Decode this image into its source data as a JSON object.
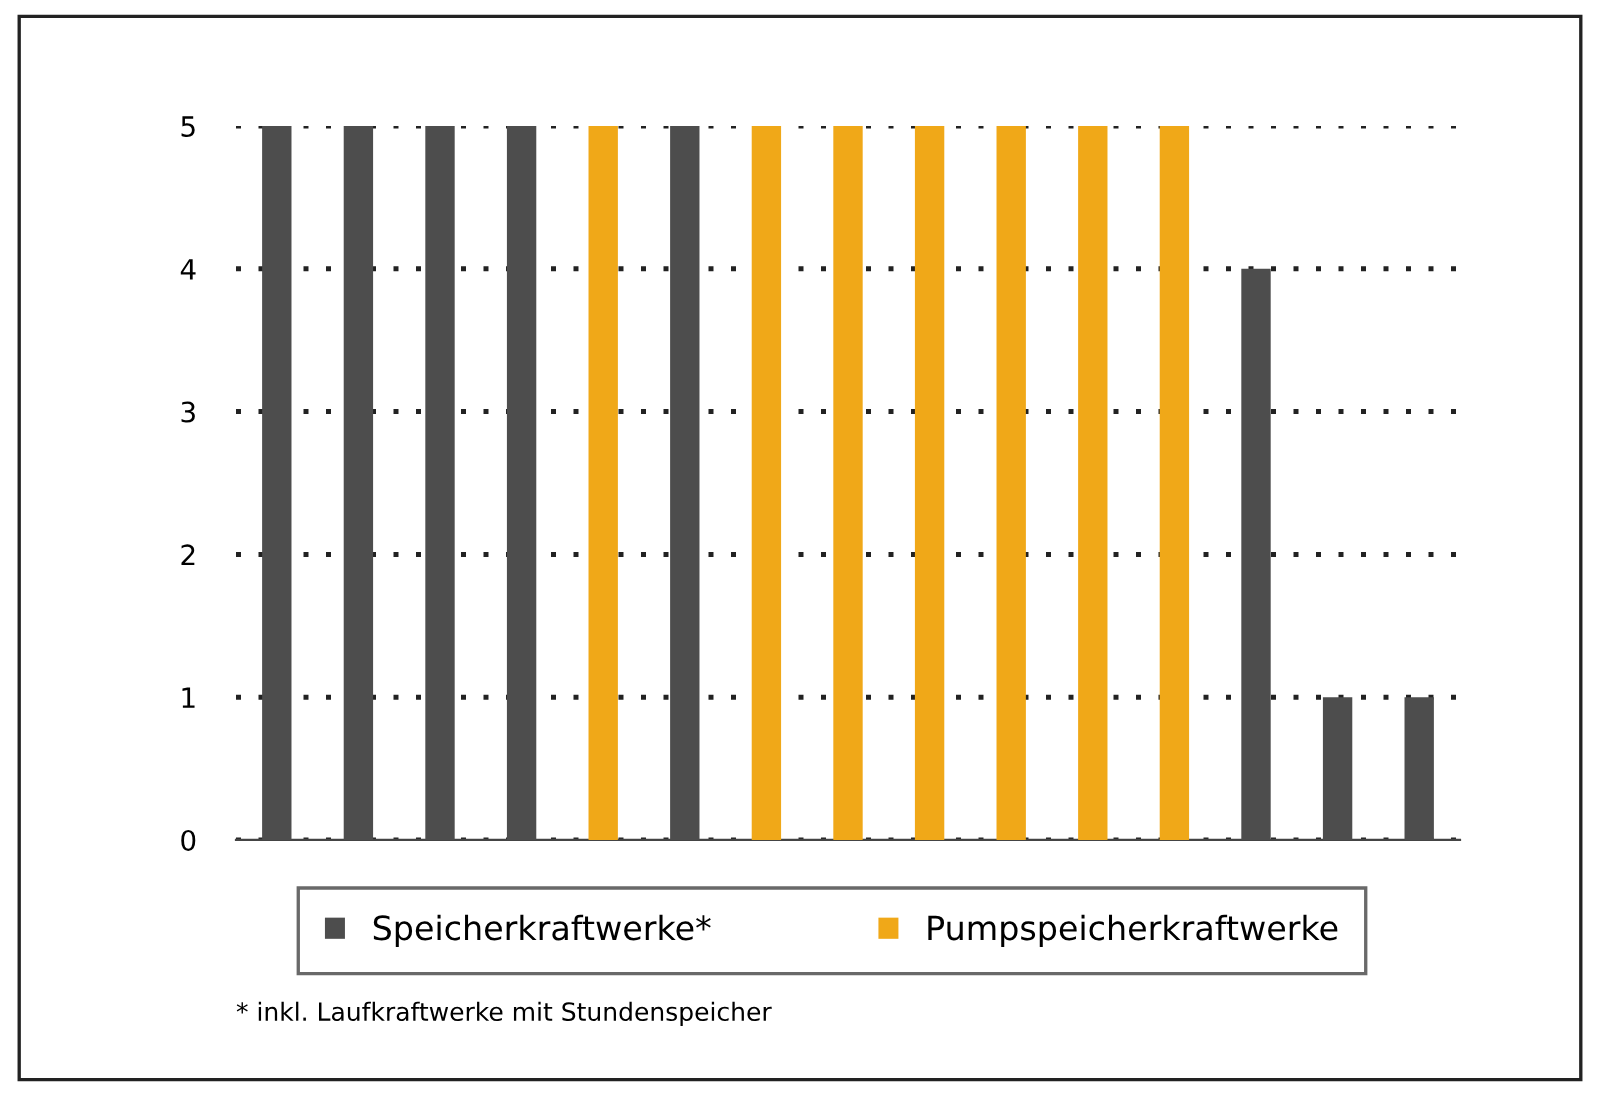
{
  "chart_data": {
    "type": "bar",
    "categories": [
      null,
      null,
      null,
      null,
      null,
      null,
      null,
      null,
      null,
      null,
      null,
      null,
      null,
      null,
      null
    ],
    "series": [
      {
        "name": "Speicherkraftwerke*",
        "color": "#4d4d4d",
        "values": [
          5,
          5,
          5,
          5,
          null,
          5,
          null,
          null,
          null,
          null,
          null,
          null,
          4,
          1,
          1
        ]
      },
      {
        "name": "Pumpspeicherkraftwerke",
        "color": "#f0a818",
        "values": [
          null,
          null,
          null,
          null,
          5,
          null,
          5,
          5,
          5,
          5,
          5,
          5,
          null,
          null,
          null
        ]
      }
    ],
    "ylim": [
      0,
      5
    ],
    "yticks": [
      0,
      1,
      2,
      3,
      4,
      5
    ],
    "grid": "y",
    "legend": "bottom",
    "annotations": [
      "* inkl. Laufkraftwerke mit Stundenspeicher"
    ]
  }
}
